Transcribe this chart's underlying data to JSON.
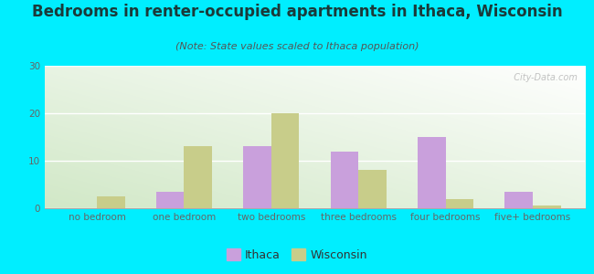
{
  "title": "Bedrooms in renter-occupied apartments in Ithaca, Wisconsin",
  "subtitle": "(Note: State values scaled to Ithaca population)",
  "categories": [
    "no bedroom",
    "one bedroom",
    "two bedrooms",
    "three bedrooms",
    "four bedrooms",
    "five+ bedrooms"
  ],
  "ithaca_values": [
    0,
    3.5,
    13,
    12,
    15,
    3.5
  ],
  "wisconsin_values": [
    2.5,
    13,
    20,
    8,
    2,
    0.5
  ],
  "ithaca_color": "#c9a0dc",
  "wisconsin_color": "#c8cd8a",
  "ylim": [
    0,
    30
  ],
  "yticks": [
    0,
    10,
    20,
    30
  ],
  "background_color": "#00eeff",
  "plot_bg_top_left": "#d4e8cc",
  "plot_bg_top_right": "#ffffff",
  "watermark": "  City-Data.com",
  "legend_ithaca": "Ithaca",
  "legend_wisconsin": "Wisconsin",
  "title_fontsize": 12,
  "subtitle_fontsize": 8,
  "tick_label_fontsize": 7.5,
  "axis_label_color": "#666666",
  "title_color": "#1a3a3a",
  "subtitle_color": "#555555",
  "bar_width": 0.32
}
